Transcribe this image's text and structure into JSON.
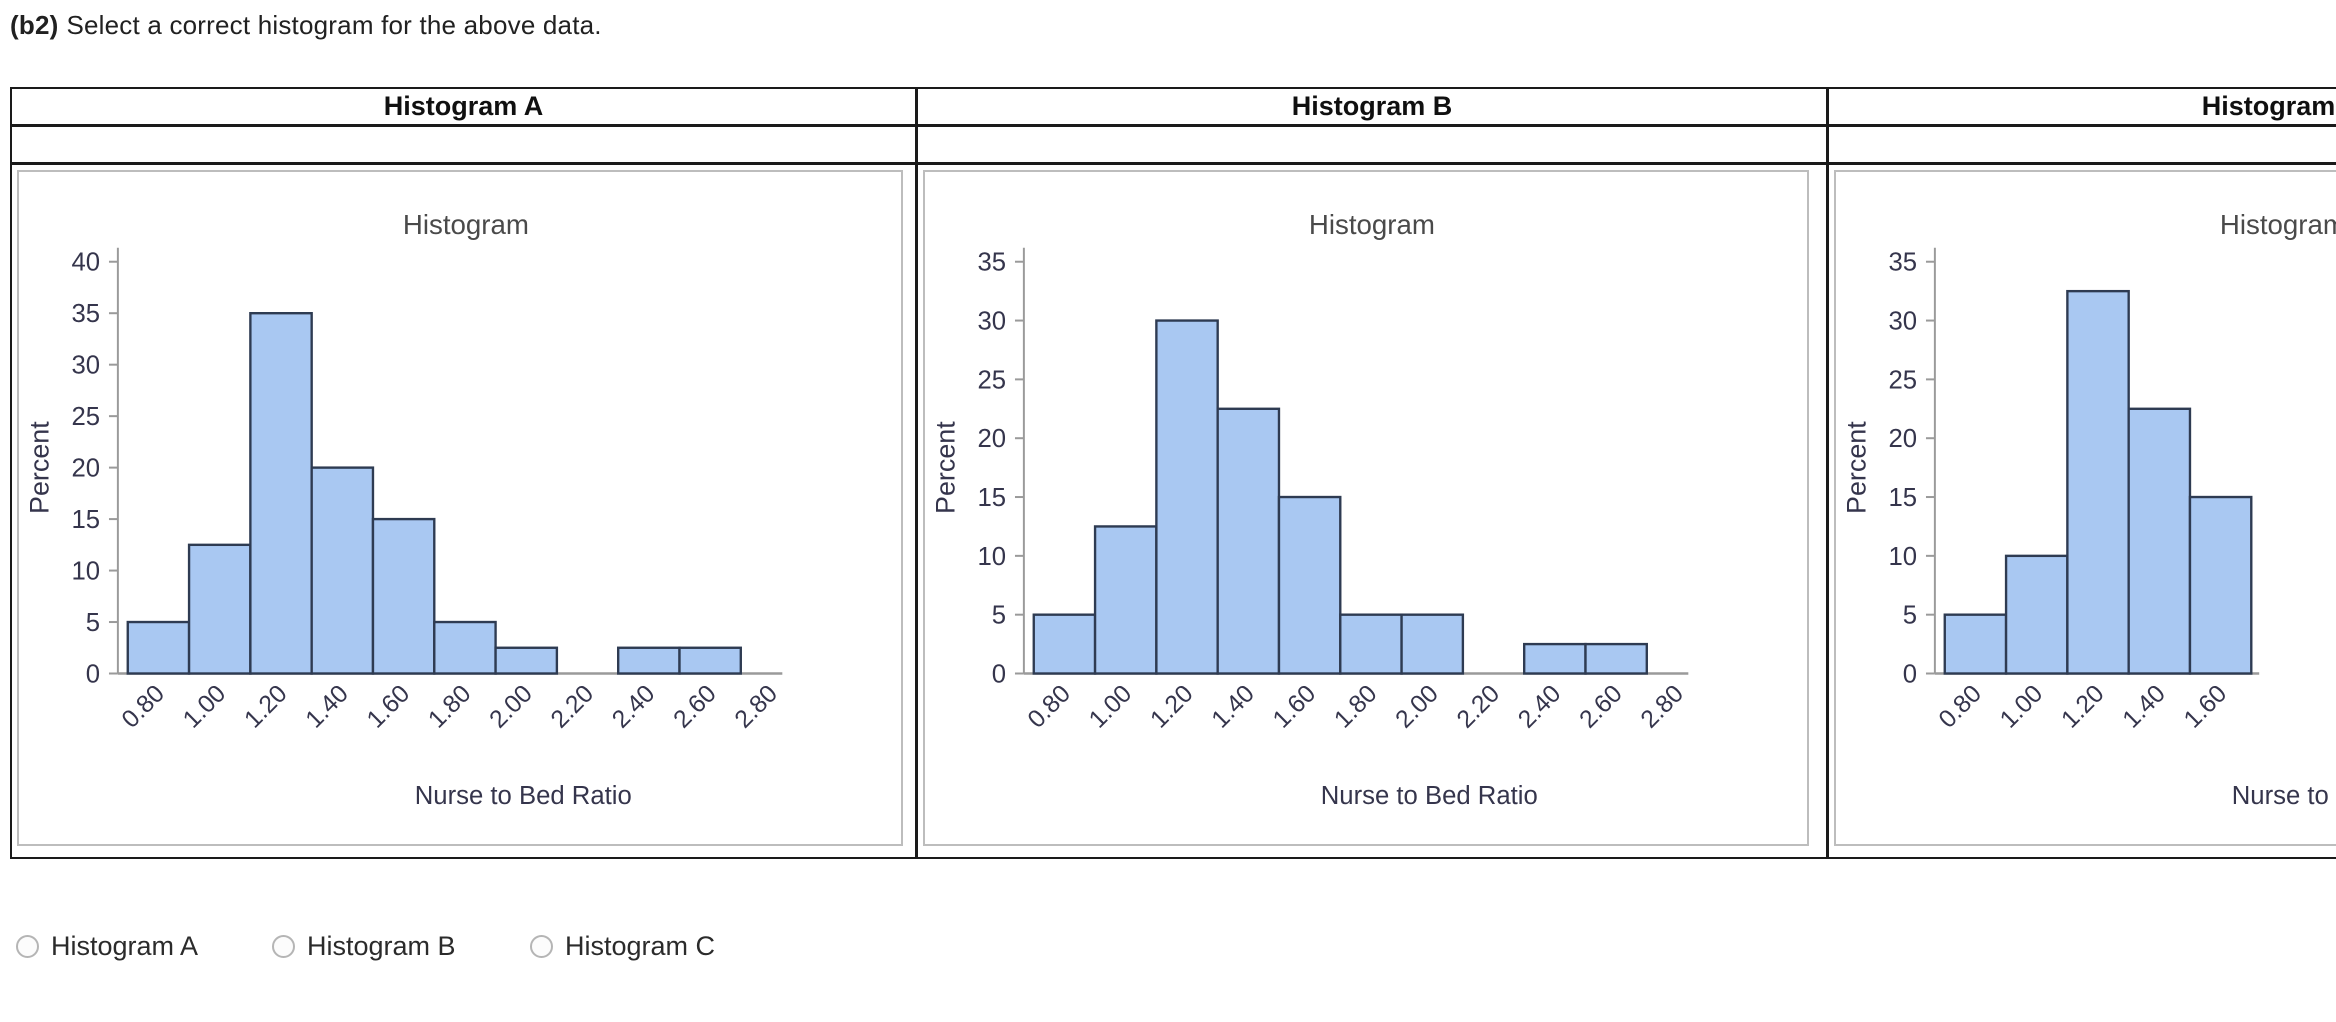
{
  "question": {
    "prefix": "(b2)",
    "text": "Select a correct histogram for the above data."
  },
  "panels": [
    {
      "header": "Histogram A",
      "chart_data": {
        "type": "bar",
        "title": "Histogram",
        "xlabel": "Nurse to Bed Ratio",
        "ylabel": "Percent",
        "x_ticks": [
          "0.80",
          "1.00",
          "1.20",
          "1.40",
          "1.60",
          "1.80",
          "2.00",
          "2.20",
          "2.40",
          "2.60",
          "2.80"
        ],
        "values": [
          5,
          12.5,
          35,
          20,
          15,
          5,
          2.5,
          0,
          2.5,
          2.5
        ],
        "ylim": [
          0,
          40
        ],
        "ytick_step": 5,
        "grid": false,
        "legend": false,
        "truncated_right": false
      }
    },
    {
      "header": "Histogram B",
      "chart_data": {
        "type": "bar",
        "title": "Histogram",
        "xlabel": "Nurse to Bed Ratio",
        "ylabel": "Percent",
        "x_ticks": [
          "0.80",
          "1.00",
          "1.20",
          "1.40",
          "1.60",
          "1.80",
          "2.00",
          "2.20",
          "2.40",
          "2.60",
          "2.80"
        ],
        "values": [
          5,
          12.5,
          30,
          22.5,
          15,
          5,
          5,
          0,
          2.5,
          2.5
        ],
        "ylim": [
          0,
          35
        ],
        "ytick_step": 5,
        "grid": false,
        "legend": false,
        "truncated_right": false
      }
    },
    {
      "header": "Histogram C",
      "chart_data": {
        "type": "bar",
        "title": "Histogram",
        "xlabel": "Nurse to Bed Ratio",
        "ylabel": "Percent",
        "x_ticks": [
          "0.80",
          "1.00",
          "1.20",
          "1.40",
          "1.60"
        ],
        "values": [
          5,
          10,
          32.5,
          22.5,
          15
        ],
        "ylim": [
          0,
          35
        ],
        "ytick_step": 5,
        "grid": false,
        "legend": false,
        "truncated_right": true
      }
    }
  ],
  "options": [
    {
      "label": "Histogram A",
      "selected": false
    },
    {
      "label": "Histogram B",
      "selected": false
    },
    {
      "label": "Histogram C",
      "selected": false
    }
  ],
  "colors": {
    "bar_fill": "#A9C8F2",
    "bar_stroke": "#2E3B52",
    "axis_line": "#9A9A9A",
    "tick_text": "#35354C",
    "chart_title": "#4A4A4A",
    "axis_title_text": "#35354C",
    "table_border": "#1A1A1A",
    "image_border": "#BDBDBD",
    "question_text": "#212121",
    "radio_border": "#B5B5B5"
  }
}
